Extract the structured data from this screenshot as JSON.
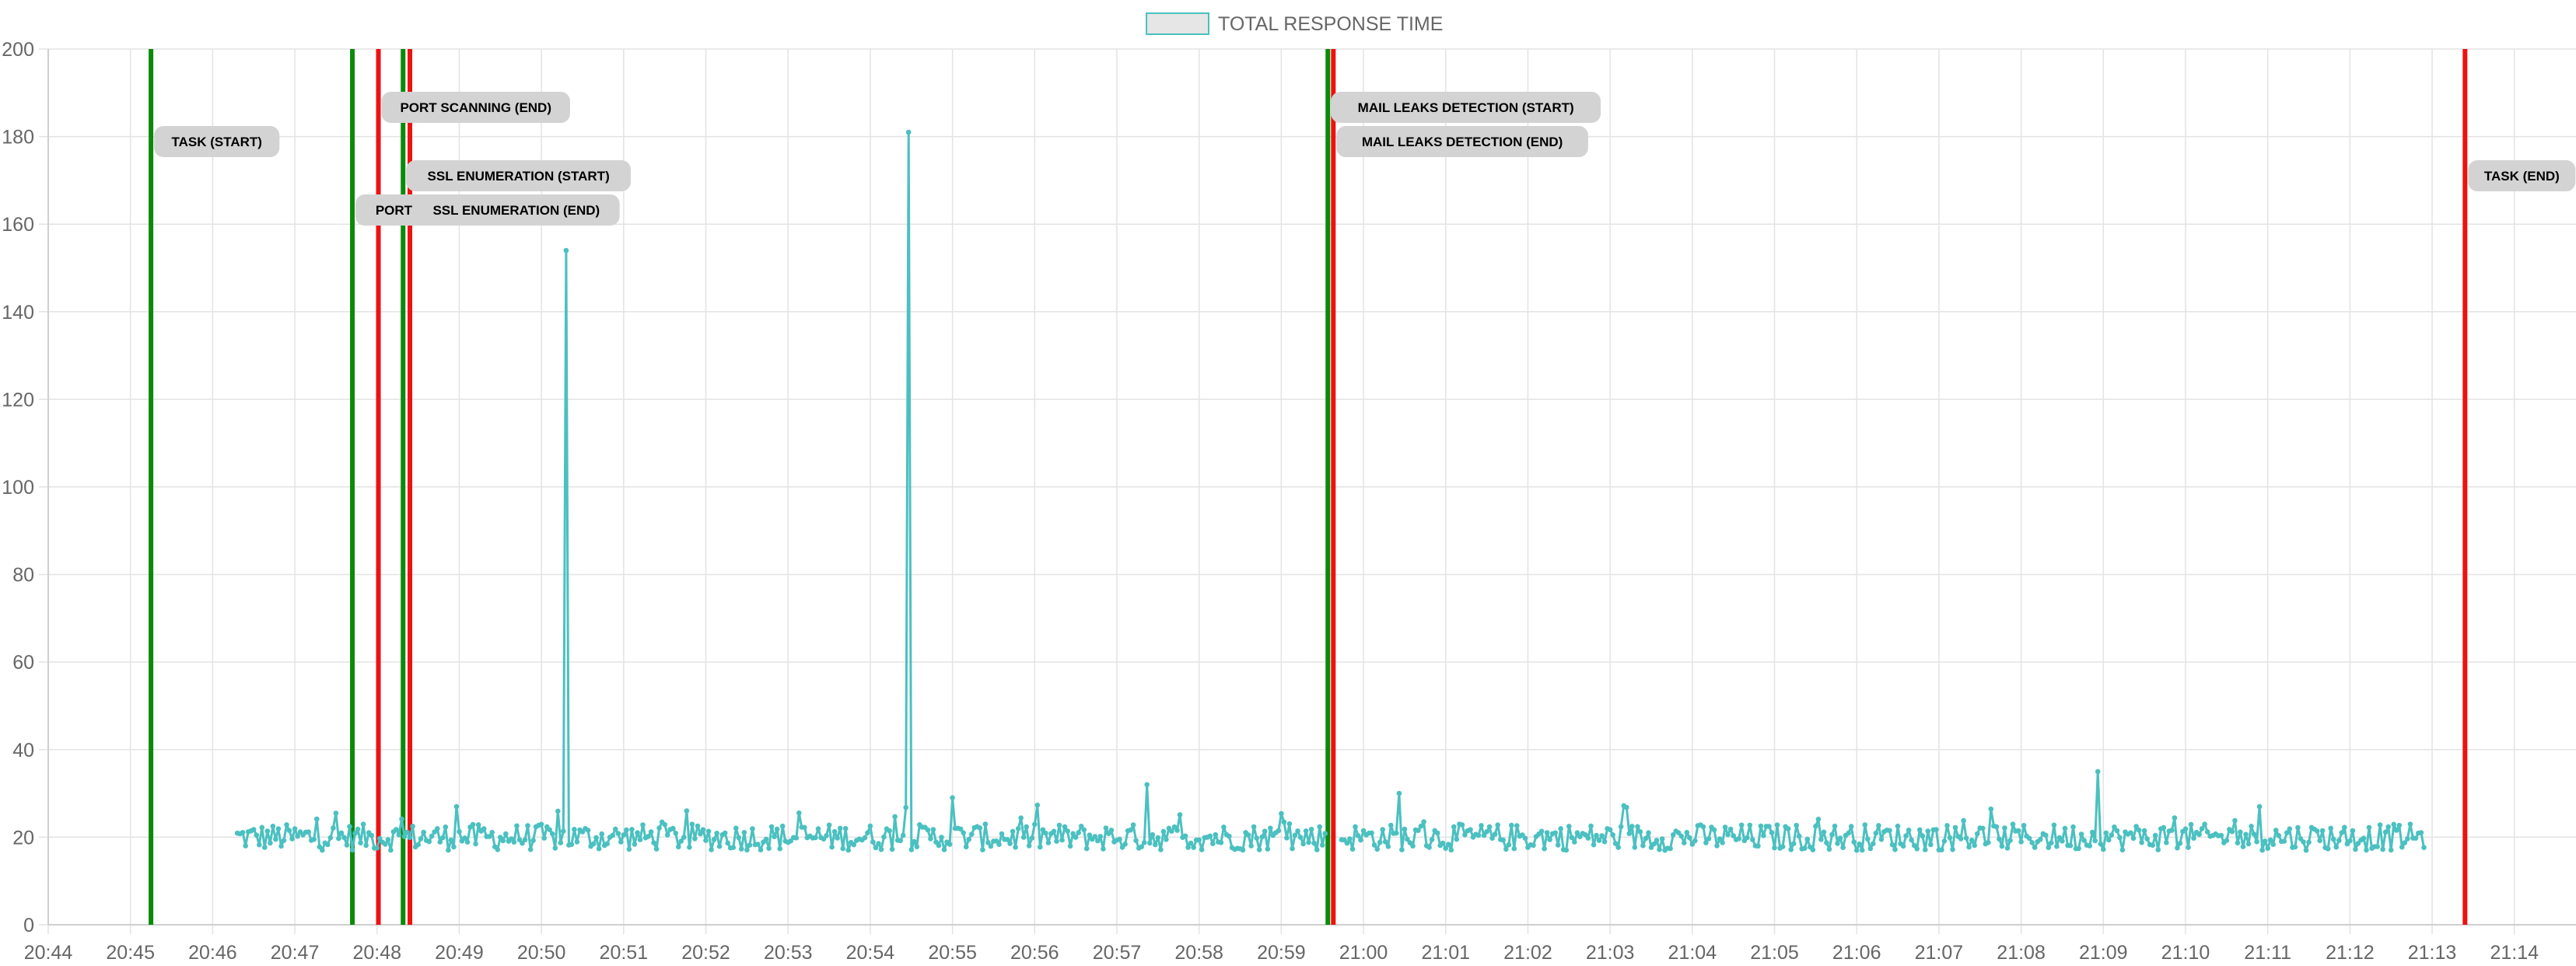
{
  "legend": {
    "label": "TOTAL RESPONSE TIME"
  },
  "colors": {
    "series_line": "#4bc0c0",
    "series_fill": "#e6e6e6",
    "start_marker": "#0a8a0a",
    "end_marker": "#ee1111",
    "annotation_bg": "#d3d3d3",
    "grid": "#e3e3e3",
    "tick_text": "#666666"
  },
  "chart_data": {
    "type": "line",
    "title": "",
    "xlabel": "",
    "ylabel": "",
    "legend_position": "top",
    "grid": true,
    "ylim": [
      0,
      200
    ],
    "y_ticks": [
      0,
      20,
      40,
      60,
      80,
      100,
      120,
      140,
      160,
      180,
      200
    ],
    "xlim": [
      "20:44",
      "21:14:45"
    ],
    "x_ticks": [
      "20:44",
      "20:45",
      "20:46",
      "20:47",
      "20:48",
      "20:49",
      "20:50",
      "20:51",
      "20:52",
      "20:53",
      "20:54",
      "20:55",
      "20:56",
      "20:57",
      "20:58",
      "20:59",
      "21:00",
      "21:01",
      "21:02",
      "21:03",
      "21:04",
      "21:05",
      "21:06",
      "21:07",
      "21:08",
      "21:09",
      "21:10",
      "21:11",
      "21:12",
      "21:13",
      "21:14"
    ],
    "series": [
      {
        "name": "TOTAL RESPONSE TIME",
        "sample_interval_s": 2,
        "x_start": "20:46:18",
        "x_end": "21:12:54",
        "baseline_range": [
          17,
          23
        ],
        "gap": {
          "from": "20:59:32",
          "to": "20:59:44"
        },
        "points": [
          {
            "x": "20:48:58",
            "y": 27
          },
          {
            "x": "20:50:18",
            "y": 154
          },
          {
            "x": "20:54:28",
            "y": 181
          },
          {
            "x": "20:55:00",
            "y": 29
          },
          {
            "x": "20:57:22",
            "y": 32
          },
          {
            "x": "21:00:26",
            "y": 30
          },
          {
            "x": "21:08:56",
            "y": 35
          },
          {
            "x": "21:10:54",
            "y": 27
          }
        ]
      }
    ],
    "annotations": [
      {
        "label": "TASK (START)",
        "x": "20:45:15",
        "kind": "start"
      },
      {
        "label": "PORT SCANNING (START)",
        "x": "20:47:42",
        "kind": "start"
      },
      {
        "label": "PORT SCANNING (END)",
        "x": "20:48:01",
        "kind": "end"
      },
      {
        "label": "SSL ENUMERATION (START)",
        "x": "20:48:19",
        "kind": "start"
      },
      {
        "label": "SSL ENUMERATION (END)",
        "x": "20:48:24",
        "kind": "end"
      },
      {
        "label": "MAIL LEAKS DETECTION (START)",
        "x": "20:59:34",
        "kind": "start"
      },
      {
        "label": "MAIL LEAKS DETECTION (END)",
        "x": "20:59:38",
        "kind": "end"
      },
      {
        "label": "TASK (END)",
        "x": "21:13:24",
        "kind": "end"
      }
    ]
  }
}
